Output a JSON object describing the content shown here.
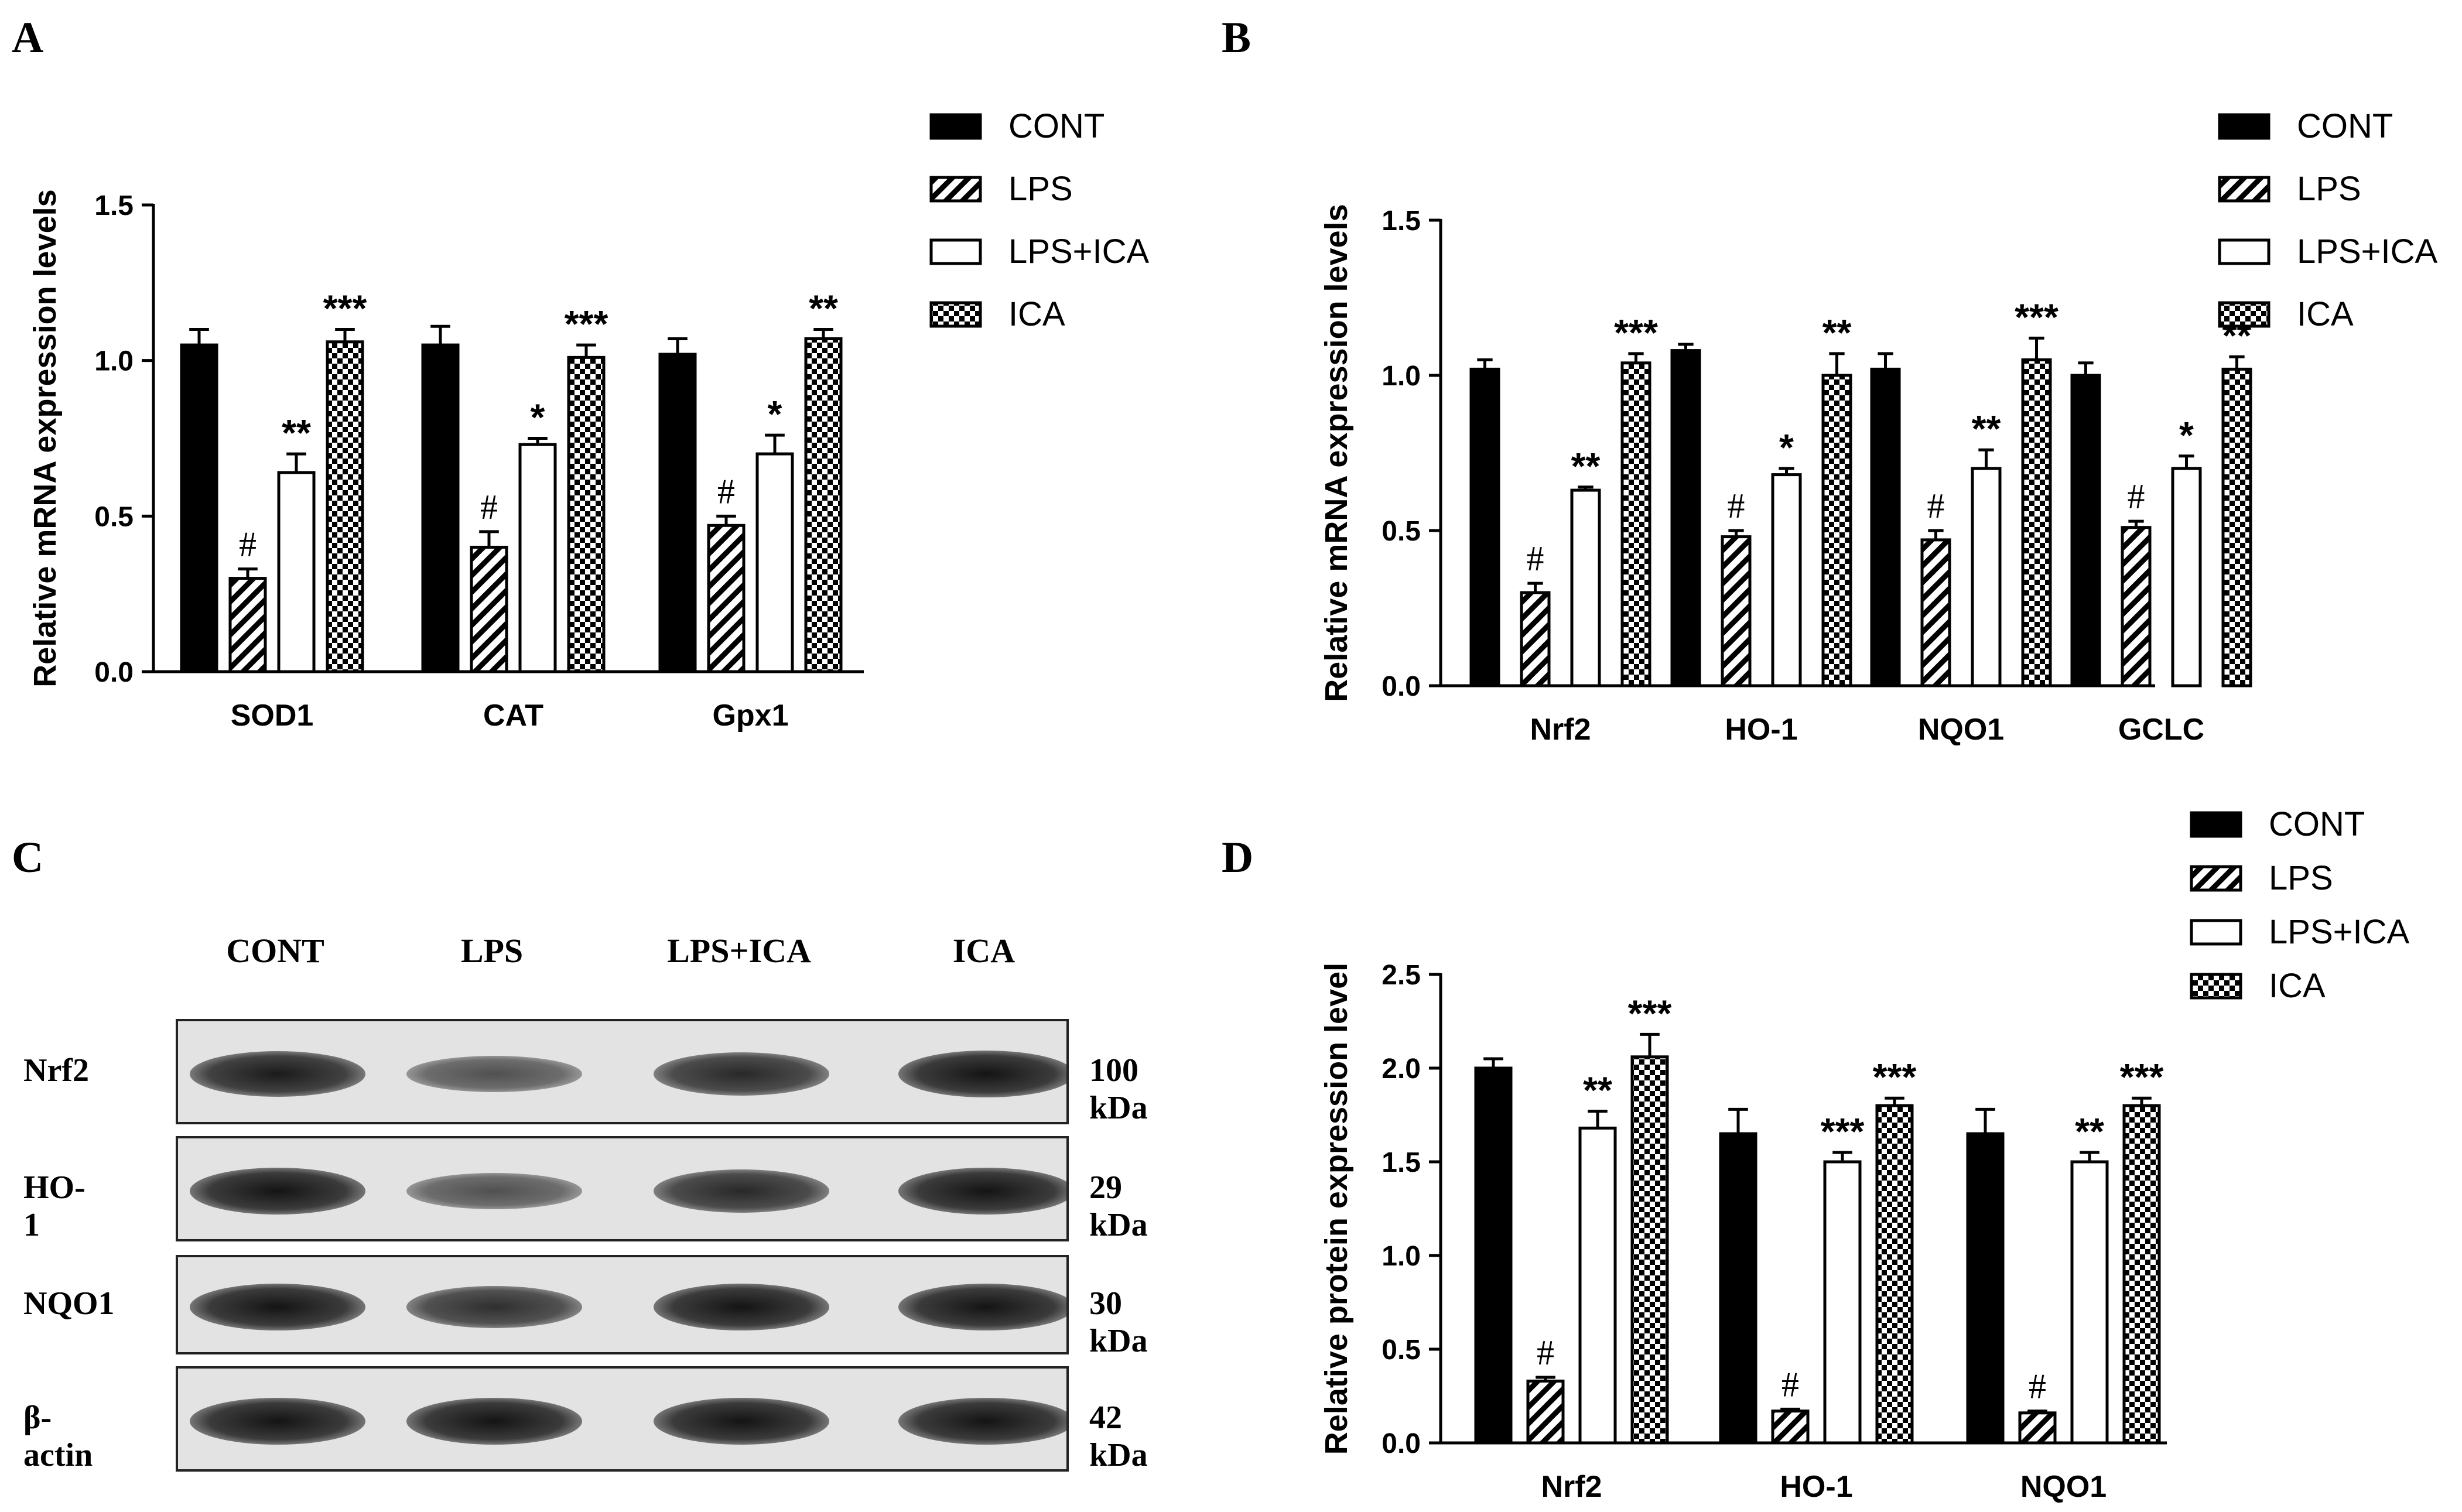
{
  "panels": {
    "A": "A",
    "B": "B",
    "C": "C",
    "D": "D"
  },
  "colors": {
    "bar_fill": "#000000",
    "band": "#1c1c1c",
    "membrane": "#e3e3e3"
  },
  "legend_items": [
    "CONT",
    "LPS",
    "LPS+ICA",
    "ICA"
  ],
  "chart_data": [
    {
      "panel": "A",
      "type": "bar",
      "title": "",
      "xlabel": "",
      "ylabel": "Relative mRNA expression levels",
      "ylim": [
        0,
        1.5
      ],
      "yticks": [
        "0.0",
        "0.5",
        "1.0",
        "1.5"
      ],
      "categories": [
        "SOD1",
        "CAT",
        "Gpx1"
      ],
      "legend": "top-right",
      "series": [
        {
          "name": "CONT",
          "pattern": "solid",
          "values": [
            1.05,
            1.05,
            1.02
          ],
          "errors": [
            0.05,
            0.06,
            0.05
          ],
          "marks": [
            "",
            "",
            ""
          ]
        },
        {
          "name": "LPS",
          "pattern": "hatch",
          "values": [
            0.3,
            0.4,
            0.47
          ],
          "errors": [
            0.03,
            0.05,
            0.03
          ],
          "marks": [
            "#",
            "#",
            "#"
          ]
        },
        {
          "name": "LPS+ICA",
          "pattern": "open",
          "values": [
            0.64,
            0.73,
            0.7
          ],
          "errors": [
            0.06,
            0.02,
            0.06
          ],
          "marks": [
            "**",
            "*",
            "*"
          ]
        },
        {
          "name": "ICA",
          "pattern": "checker",
          "values": [
            1.06,
            1.01,
            1.07
          ],
          "errors": [
            0.04,
            0.04,
            0.03
          ],
          "marks": [
            "***",
            "***",
            "**"
          ]
        }
      ]
    },
    {
      "panel": "B",
      "type": "bar",
      "title": "",
      "xlabel": "",
      "ylabel": "Relative mRNA expression levels",
      "ylim": [
        0,
        1.5
      ],
      "yticks": [
        "0.0",
        "0.5",
        "1.0",
        "1.5"
      ],
      "categories": [
        "Nrf2",
        "HO-1",
        "NQO1",
        "GCLC"
      ],
      "legend": "top-right",
      "series": [
        {
          "name": "CONT",
          "pattern": "solid",
          "values": [
            1.02,
            1.08,
            1.02,
            1.0
          ],
          "errors": [
            0.03,
            0.02,
            0.05,
            0.04
          ],
          "marks": [
            "",
            "",
            "",
            ""
          ]
        },
        {
          "name": "LPS",
          "pattern": "hatch",
          "values": [
            0.3,
            0.48,
            0.47,
            0.51
          ],
          "errors": [
            0.03,
            0.02,
            0.03,
            0.02
          ],
          "marks": [
            "#",
            "#",
            "#",
            "#"
          ]
        },
        {
          "name": "LPS+ICA",
          "pattern": "open",
          "values": [
            0.63,
            0.68,
            0.7,
            0.7
          ],
          "errors": [
            0.01,
            0.02,
            0.06,
            0.04
          ],
          "marks": [
            "**",
            "*",
            "**",
            "*"
          ]
        },
        {
          "name": "ICA",
          "pattern": "checker",
          "values": [
            1.04,
            1.0,
            1.05,
            1.02
          ],
          "errors": [
            0.03,
            0.07,
            0.07,
            0.04
          ],
          "marks": [
            "***",
            "**",
            "***",
            "**"
          ]
        }
      ]
    },
    {
      "panel": "D",
      "type": "bar",
      "title": "",
      "xlabel": "",
      "ylabel": "Relative protein expression level",
      "ylim": [
        0,
        2.5
      ],
      "yticks": [
        "0.0",
        "0.5",
        "1.0",
        "1.5",
        "2.0",
        "2.5"
      ],
      "categories": [
        "Nrf2",
        "HO-1",
        "NQO1"
      ],
      "legend": "top-right",
      "series": [
        {
          "name": "CONT",
          "pattern": "solid",
          "values": [
            2.0,
            1.65,
            1.65
          ],
          "errors": [
            0.05,
            0.13,
            0.13
          ],
          "marks": [
            "",
            "",
            ""
          ]
        },
        {
          "name": "LPS",
          "pattern": "hatch",
          "values": [
            0.33,
            0.17,
            0.16
          ],
          "errors": [
            0.02,
            0.01,
            0.01
          ],
          "marks": [
            "#",
            "#",
            "#"
          ]
        },
        {
          "name": "LPS+ICA",
          "pattern": "open",
          "values": [
            1.68,
            1.5,
            1.5
          ],
          "errors": [
            0.09,
            0.05,
            0.05
          ],
          "marks": [
            "**",
            "***",
            "**"
          ]
        },
        {
          "name": "ICA",
          "pattern": "checker",
          "values": [
            2.06,
            1.8,
            1.8
          ],
          "errors": [
            0.12,
            0.04,
            0.04
          ],
          "marks": [
            "***",
            "***",
            "***"
          ]
        }
      ]
    }
  ],
  "blot": {
    "columns": [
      "CONT",
      "LPS",
      "LPS+ICA",
      "ICA"
    ],
    "rows": [
      {
        "label": "Nrf2",
        "kda": "100 kDa",
        "intensity": [
          0.95,
          0.55,
          0.85,
          1.0
        ]
      },
      {
        "label": "HO-1",
        "kda": "29 kDa",
        "intensity": [
          1.0,
          0.55,
          0.85,
          1.0
        ]
      },
      {
        "label": "NQO1",
        "kda": "30 kDa",
        "intensity": [
          1.0,
          0.8,
          1.0,
          1.0
        ]
      },
      {
        "label": "β-actin",
        "kda": "42 kDa",
        "intensity": [
          1.0,
          1.0,
          1.0,
          1.0
        ]
      }
    ]
  }
}
